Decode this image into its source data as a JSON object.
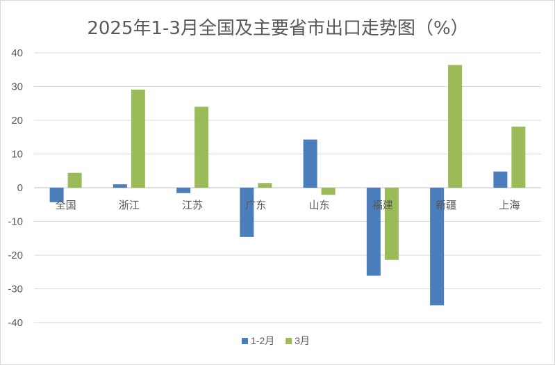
{
  "chart_data": {
    "type": "bar",
    "title": "2025年1-3月全国及主要省市出口走势图（%）",
    "xlabel": "",
    "ylabel": "",
    "categories": [
      "全国",
      "浙江",
      "江苏",
      "广东",
      "山东",
      "福建",
      "新疆",
      "上海"
    ],
    "series": [
      {
        "name": "1-2月",
        "color": "#4a7ebb",
        "values": [
          -4.3,
          1.0,
          -1.6,
          -14.6,
          14.3,
          -26.1,
          -34.9,
          4.8
        ]
      },
      {
        "name": "3月",
        "color": "#9bbb59",
        "values": [
          4.4,
          29.1,
          24.0,
          1.4,
          -2.1,
          -21.4,
          36.4,
          18.1
        ]
      }
    ],
    "ylim": [
      -40,
      40
    ],
    "yticks": [
      -40,
      -30,
      -20,
      -10,
      0,
      10,
      20,
      30,
      40
    ],
    "grid": true,
    "legend": "bottom"
  }
}
